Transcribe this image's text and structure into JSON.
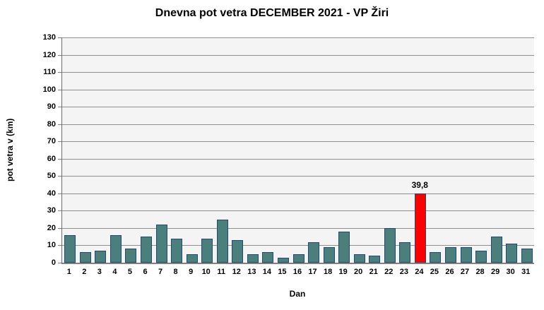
{
  "chart_data": {
    "type": "bar",
    "title": "Dnevna pot vetra DECEMBER 2021 - VP Žiri",
    "xlabel": "Dan",
    "ylabel": "pot vetra  v (km)",
    "ylim": [
      0,
      130
    ],
    "ytick_step": 10,
    "yticks": [
      "0",
      "10",
      "20",
      "30",
      "40",
      "50",
      "60",
      "70",
      "80",
      "90",
      "100",
      "110",
      "120",
      "130"
    ],
    "grid": true,
    "legend": "none",
    "categories": [
      "1",
      "2",
      "3",
      "4",
      "5",
      "6",
      "7",
      "8",
      "9",
      "10",
      "11",
      "12",
      "13",
      "14",
      "15",
      "16",
      "17",
      "18",
      "19",
      "20",
      "21",
      "22",
      "23",
      "24",
      "25",
      "26",
      "27",
      "28",
      "29",
      "30",
      "31"
    ],
    "values": [
      16,
      6,
      7,
      16,
      8,
      15,
      22,
      14,
      5,
      14,
      25,
      13,
      5,
      6,
      3,
      5,
      12,
      9,
      18,
      5,
      4,
      20,
      12,
      39.8,
      6,
      9,
      9,
      7,
      15,
      11,
      8
    ],
    "highlight": {
      "category": "24",
      "index": 23,
      "value_label": "39,8",
      "color": "#ff0000"
    },
    "colors": {
      "bar_fill": "#4b7f7b",
      "bar_border": "#24496f",
      "highlight_fill": "#ff0000",
      "plot_bg": "#f4f4f4",
      "gridline": "#909090",
      "axis": "#808080",
      "text": "#000000"
    }
  }
}
